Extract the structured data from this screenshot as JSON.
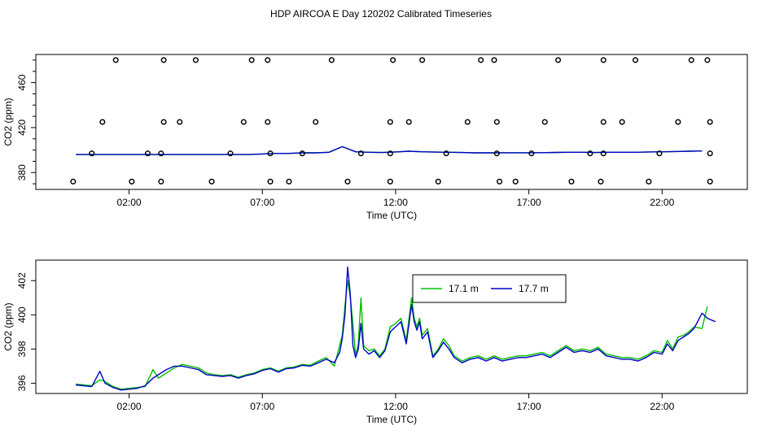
{
  "title": "HDP AIRCOA E  Day 120202  Calibrated Timeseries",
  "colors": {
    "green": "#00c000",
    "blue": "#0000c8",
    "axis": "#000000"
  },
  "chart_data": [
    {
      "type": "scatter",
      "xlabel": "Time (UTC)",
      "ylabel": "CO2 (ppm)",
      "xlim": [
        -1.5,
        25.2
      ],
      "ylim": [
        365,
        485
      ],
      "xticks": [
        2,
        7,
        12,
        17,
        22
      ],
      "xtick_labels": [
        "02:00",
        "07:00",
        "12:00",
        "17:00",
        "22:00"
      ],
      "yticks": [
        380,
        420,
        460
      ],
      "ytick_labels": [
        "380",
        "420",
        "460"
      ],
      "points": [
        [
          1.5,
          480
        ],
        [
          3.3,
          480
        ],
        [
          4.5,
          480
        ],
        [
          6.6,
          480
        ],
        [
          7.2,
          480
        ],
        [
          9.6,
          480
        ],
        [
          11.9,
          480
        ],
        [
          13.0,
          480
        ],
        [
          15.2,
          480
        ],
        [
          15.7,
          480
        ],
        [
          18.1,
          480
        ],
        [
          19.8,
          480
        ],
        [
          21.0,
          480
        ],
        [
          23.1,
          480
        ],
        [
          23.7,
          480
        ],
        [
          1.0,
          425
        ],
        [
          3.3,
          425
        ],
        [
          3.9,
          425
        ],
        [
          6.3,
          425
        ],
        [
          7.2,
          425
        ],
        [
          9.0,
          425
        ],
        [
          11.8,
          425
        ],
        [
          12.5,
          425
        ],
        [
          14.7,
          425
        ],
        [
          15.8,
          425
        ],
        [
          17.6,
          425
        ],
        [
          19.8,
          425
        ],
        [
          20.5,
          425
        ],
        [
          22.6,
          425
        ],
        [
          23.8,
          425
        ],
        [
          0.6,
          397
        ],
        [
          2.7,
          397
        ],
        [
          3.2,
          397
        ],
        [
          5.8,
          397
        ],
        [
          7.3,
          397
        ],
        [
          8.5,
          397
        ],
        [
          10.7,
          397
        ],
        [
          11.8,
          397
        ],
        [
          13.9,
          397
        ],
        [
          15.8,
          397
        ],
        [
          17.1,
          397
        ],
        [
          19.3,
          397
        ],
        [
          19.8,
          397
        ],
        [
          21.9,
          397
        ],
        [
          23.8,
          397
        ],
        [
          -0.1,
          372
        ],
        [
          2.1,
          372
        ],
        [
          3.2,
          372
        ],
        [
          5.1,
          372
        ],
        [
          7.3,
          372
        ],
        [
          8.0,
          372
        ],
        [
          10.2,
          372
        ],
        [
          11.8,
          372
        ],
        [
          13.6,
          372
        ],
        [
          15.9,
          372
        ],
        [
          16.5,
          372
        ],
        [
          18.6,
          372
        ],
        [
          19.7,
          372
        ],
        [
          21.5,
          372
        ],
        [
          23.8,
          372
        ]
      ],
      "series": [
        {
          "color": "green",
          "x": [
            0,
            0.5,
            1,
            1.5,
            2,
            2.5,
            3,
            3.5,
            4,
            4.5,
            5,
            5.5,
            6,
            6.5,
            7,
            7.5,
            8,
            8.5,
            9,
            9.5,
            10,
            10.5,
            11,
            11.5,
            12,
            12.5,
            13,
            13.5,
            14,
            14.5,
            15,
            15.5,
            16,
            16.5,
            17,
            17.5,
            18,
            18.5,
            19,
            19.5,
            20,
            20.5,
            21,
            21.5,
            22,
            22.5,
            23,
            23.5
          ],
          "values": [
            396,
            396,
            396,
            396,
            396,
            396,
            396,
            396,
            396,
            396,
            396,
            396,
            396,
            396,
            396.5,
            397,
            397,
            397.5,
            397.5,
            398,
            403,
            398.5,
            398,
            397.8,
            398.3,
            399,
            398.5,
            398.2,
            398,
            397.8,
            397.5,
            397.5,
            397.6,
            397.6,
            397.6,
            397.7,
            397.9,
            398,
            398,
            397.8,
            398,
            398,
            398,
            398.3,
            398.5,
            398.7,
            399,
            399.2
          ]
        },
        {
          "color": "blue",
          "x": [
            0,
            0.5,
            1,
            1.5,
            2,
            2.5,
            3,
            3.5,
            4,
            4.5,
            5,
            5.5,
            6,
            6.5,
            7,
            7.5,
            8,
            8.5,
            9,
            9.5,
            10,
            10.5,
            11,
            11.5,
            12,
            12.5,
            13,
            13.5,
            14,
            14.5,
            15,
            15.5,
            16,
            16.5,
            17,
            17.5,
            18,
            18.5,
            19,
            19.5,
            20,
            20.5,
            21,
            21.5,
            22,
            22.5,
            23,
            23.5
          ],
          "values": [
            396,
            396,
            396,
            396,
            396,
            396,
            396,
            396,
            396,
            396,
            396,
            396,
            396,
            396,
            396.5,
            397,
            397,
            397.5,
            397.5,
            398,
            403,
            398.5,
            398,
            397.8,
            398.3,
            399,
            398.5,
            398.2,
            398,
            397.8,
            397.5,
            397.5,
            397.6,
            397.6,
            397.6,
            397.7,
            397.9,
            398,
            398,
            397.8,
            398,
            398,
            398,
            398.3,
            398.5,
            398.7,
            399,
            399.2
          ]
        }
      ]
    },
    {
      "type": "line",
      "xlabel": "Time (UTC)",
      "ylabel": "CO2 (ppm)",
      "xlim": [
        -1.5,
        25.2
      ],
      "ylim": [
        395.4,
        403.2
      ],
      "xticks": [
        2,
        7,
        12,
        17,
        22
      ],
      "xtick_labels": [
        "02:00",
        "07:00",
        "12:00",
        "17:00",
        "22:00"
      ],
      "yticks": [
        396,
        398,
        400,
        402
      ],
      "ytick_labels": [
        "396",
        "398",
        "400",
        "402"
      ],
      "legend": "top-center",
      "series": [
        {
          "name": "17.1 m",
          "color": "green",
          "x": [
            0,
            0.3,
            0.6,
            0.9,
            1.1,
            1.4,
            1.7,
            2.0,
            2.3,
            2.6,
            2.9,
            3.1,
            3.4,
            3.7,
            4.0,
            4.3,
            4.6,
            4.9,
            5.2,
            5.5,
            5.8,
            6.1,
            6.4,
            6.7,
            7.0,
            7.3,
            7.6,
            7.9,
            8.2,
            8.5,
            8.8,
            9.1,
            9.4,
            9.7,
            9.9,
            10.0,
            10.1,
            10.2,
            10.3,
            10.4,
            10.5,
            10.6,
            10.7,
            10.8,
            11.0,
            11.2,
            11.4,
            11.6,
            11.8,
            12.0,
            12.2,
            12.4,
            12.6,
            12.7,
            12.8,
            12.9,
            13.0,
            13.2,
            13.4,
            13.6,
            13.8,
            14.0,
            14.2,
            14.5,
            14.8,
            15.1,
            15.4,
            15.7,
            16.0,
            16.3,
            16.6,
            16.9,
            17.2,
            17.5,
            17.8,
            18.1,
            18.4,
            18.7,
            19.0,
            19.3,
            19.6,
            19.9,
            20.2,
            20.5,
            20.8,
            21.1,
            21.4,
            21.7,
            22.0,
            22.2,
            22.4,
            22.6,
            22.8,
            23.0,
            23.2,
            23.5,
            23.7
          ],
          "values": [
            395.95,
            395.9,
            395.85,
            396.2,
            396.1,
            395.8,
            395.65,
            395.7,
            395.75,
            395.8,
            396.8,
            396.3,
            396.6,
            396.9,
            397.1,
            397.0,
            396.9,
            396.6,
            396.5,
            396.45,
            396.5,
            396.35,
            396.5,
            396.6,
            396.8,
            396.9,
            396.7,
            396.9,
            396.95,
            397.1,
            397.05,
            397.3,
            397.5,
            397.0,
            398.2,
            398.8,
            400.5,
            402.0,
            401.0,
            399.5,
            397.6,
            398.3,
            401.0,
            398.2,
            397.9,
            398.0,
            397.6,
            398.0,
            399.3,
            399.5,
            399.8,
            398.5,
            401.0,
            399.8,
            399.3,
            399.8,
            398.8,
            399.2,
            397.6,
            398.0,
            398.6,
            398.2,
            397.6,
            397.3,
            397.5,
            397.6,
            397.4,
            397.6,
            397.4,
            397.5,
            397.6,
            397.6,
            397.7,
            397.8,
            397.6,
            397.9,
            398.2,
            397.9,
            398.0,
            397.9,
            398.1,
            397.7,
            397.6,
            397.5,
            397.5,
            397.4,
            397.6,
            397.9,
            397.8,
            398.5,
            398.0,
            398.7,
            398.8,
            399.0,
            399.3,
            399.2,
            400.5
          ]
        },
        {
          "name": "17.7 m",
          "color": "blue",
          "x": [
            0,
            0.3,
            0.6,
            0.9,
            1.1,
            1.4,
            1.7,
            2.0,
            2.3,
            2.6,
            2.9,
            3.1,
            3.4,
            3.7,
            4.0,
            4.3,
            4.6,
            4.9,
            5.2,
            5.5,
            5.8,
            6.1,
            6.4,
            6.7,
            7.0,
            7.3,
            7.6,
            7.9,
            8.2,
            8.5,
            8.8,
            9.1,
            9.4,
            9.7,
            9.9,
            10.0,
            10.1,
            10.2,
            10.3,
            10.4,
            10.5,
            10.6,
            10.7,
            10.8,
            11.0,
            11.2,
            11.4,
            11.6,
            11.8,
            12.0,
            12.2,
            12.4,
            12.6,
            12.7,
            12.8,
            12.9,
            13.0,
            13.2,
            13.4,
            13.6,
            13.8,
            14.0,
            14.2,
            14.5,
            14.8,
            15.1,
            15.4,
            15.7,
            16.0,
            16.3,
            16.6,
            16.9,
            17.2,
            17.5,
            17.8,
            18.1,
            18.4,
            18.7,
            19.0,
            19.3,
            19.6,
            19.9,
            20.2,
            20.5,
            20.8,
            21.1,
            21.4,
            21.7,
            22.0,
            22.2,
            22.4,
            22.6,
            22.8,
            23.0,
            23.2,
            23.5,
            23.7,
            24.0
          ],
          "values": [
            395.9,
            395.85,
            395.8,
            396.7,
            396.0,
            395.75,
            395.6,
            395.65,
            395.7,
            395.85,
            396.3,
            396.5,
            396.8,
            397.0,
            397.0,
            396.9,
            396.8,
            396.5,
            396.45,
            396.4,
            396.45,
            396.3,
            396.45,
            396.55,
            396.75,
            396.85,
            396.65,
            396.85,
            396.9,
            397.05,
            397.0,
            397.2,
            397.4,
            397.2,
            397.8,
            398.6,
            400.0,
            402.8,
            401.2,
            398.2,
            397.5,
            398.0,
            399.5,
            398.0,
            397.7,
            397.9,
            397.5,
            397.9,
            399.0,
            399.3,
            399.6,
            398.3,
            400.6,
            399.6,
            399.1,
            399.6,
            398.6,
            399.0,
            397.5,
            397.9,
            398.4,
            398.0,
            397.5,
            397.2,
            397.4,
            397.5,
            397.3,
            397.5,
            397.3,
            397.4,
            397.5,
            397.5,
            397.6,
            397.7,
            397.5,
            397.8,
            398.1,
            397.8,
            397.9,
            397.8,
            398.0,
            397.6,
            397.5,
            397.4,
            397.4,
            397.3,
            397.5,
            397.8,
            397.7,
            398.3,
            397.9,
            398.5,
            398.7,
            398.9,
            399.2,
            400.1,
            399.8,
            399.6
          ]
        }
      ]
    }
  ]
}
